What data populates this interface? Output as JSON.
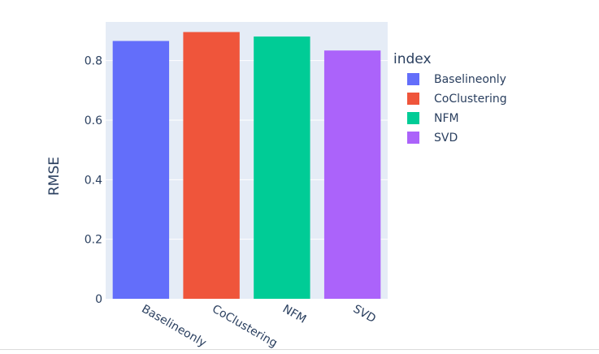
{
  "chart_data": {
    "type": "bar",
    "categories": [
      "Baselineonly",
      "CoClustering",
      "NFM",
      "SVD"
    ],
    "values": [
      0.866,
      0.896,
      0.881,
      0.834
    ],
    "colors": [
      "#636efa",
      "#ef553b",
      "#00cc96",
      "#ab63fa"
    ],
    "ylabel": "RMSE",
    "ylim": [
      0,
      0.93
    ],
    "yticks": [
      0,
      0.2,
      0.4,
      0.6,
      0.8
    ],
    "ytick_labels": [
      "0",
      "0.2",
      "0.4",
      "0.6",
      "0.8"
    ],
    "grid": true,
    "plot_background": "#e5ecf6",
    "legend": {
      "title": "index",
      "placement": "right",
      "entries": [
        "Baselineonly",
        "CoClustering",
        "NFM",
        "SVD"
      ]
    }
  }
}
